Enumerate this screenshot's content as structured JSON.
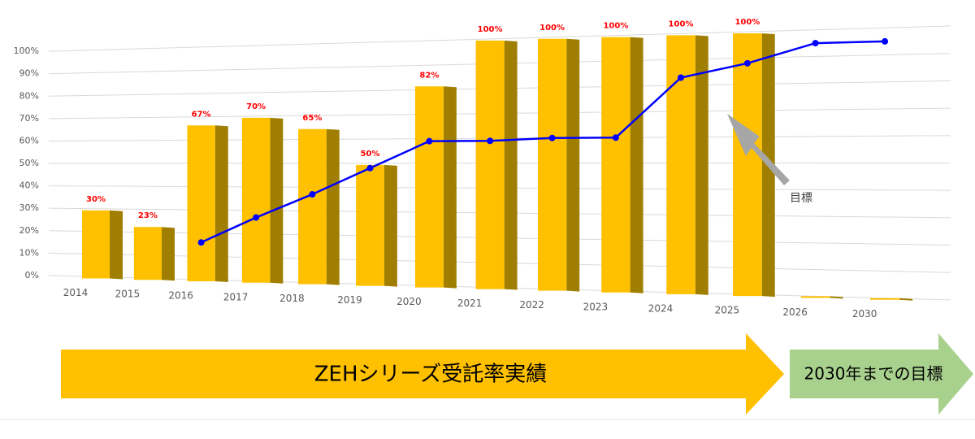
{
  "chart_data": {
    "type": "bar",
    "categories": [
      "2014",
      "2015",
      "2016",
      "2017",
      "2018",
      "2019",
      "2020",
      "2021",
      "2022",
      "2023",
      "2024",
      "2025",
      "2026",
      "2030"
    ],
    "series": [
      {
        "type": "bar",
        "color": "#ffc000",
        "side_color": "#a07f00",
        "values": [
          30,
          23,
          67,
          70,
          65,
          50,
          82,
          100,
          100,
          100,
          100,
          100,
          0,
          0
        ],
        "value_labels": [
          "30%",
          "23%",
          "67%",
          "70%",
          "65%",
          "50%",
          "82%",
          "100%",
          "100%",
          "100%",
          "100%",
          "100%",
          null,
          null
        ]
      },
      {
        "type": "line",
        "color": "#0000ff",
        "values": [
          null,
          null,
          16,
          27,
          37,
          48,
          59,
          59,
          60,
          60,
          83,
          88,
          95,
          95
        ]
      }
    ],
    "ylim": [
      0,
      100
    ],
    "yticks": [
      {
        "value": 0,
        "label": "0%"
      },
      {
        "value": 10,
        "label": "10%"
      },
      {
        "value": 20,
        "label": "20%"
      },
      {
        "value": 30,
        "label": "30%"
      },
      {
        "value": 40,
        "label": "40%"
      },
      {
        "value": 50,
        "label": "50%"
      },
      {
        "value": 60,
        "label": "60%"
      },
      {
        "value": 70,
        "label": "70%"
      },
      {
        "value": 80,
        "label": "80%"
      },
      {
        "value": 90,
        "label": "90%"
      },
      {
        "value": 100,
        "label": "100%"
      }
    ],
    "grid": true,
    "annotation": "目標",
    "banners": [
      "ZEHシリーズ受託率実績",
      "2030年までの目標"
    ]
  }
}
